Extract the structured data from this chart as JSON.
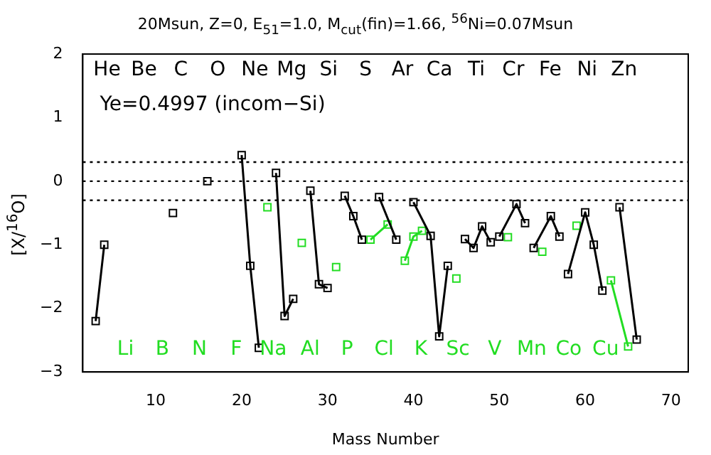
{
  "chart_data": {
    "type": "line",
    "title": "20Msun, Z=0, E$_{51}$=1.0, M$_{cut}$(fin)=1.66, $^{56}$Ni=0.07Msun",
    "xlabel": "Mass Number",
    "ylabel": "[X/$^{16}$O]",
    "series": [
      {
        "color": "#000000",
        "x": [
          3,
          4,
          5,
          12,
          13,
          16,
          17,
          20,
          21,
          22,
          23,
          24,
          25,
          26,
          27,
          28,
          29,
          30,
          31,
          32,
          33,
          34,
          35,
          36,
          38,
          39,
          40,
          42,
          43,
          44,
          45,
          46,
          47,
          48,
          49,
          49.5,
          50,
          52,
          53,
          53.5,
          54,
          56,
          57,
          57.5,
          58,
          60,
          61,
          62,
          63,
          64,
          66
        ],
        "values": [
          -2.2,
          -1.0,
          null,
          -0.5,
          null,
          0.0,
          null,
          0.41,
          -1.33,
          -2.62,
          null,
          0.13,
          -2.12,
          -1.85,
          null,
          -0.15,
          -1.62,
          -1.68,
          null,
          -0.23,
          -0.55,
          -0.92,
          null,
          -0.25,
          -0.92,
          null,
          -0.33,
          -0.86,
          -2.44,
          -1.33,
          null,
          -0.91,
          -1.05,
          -0.71,
          -0.96,
          null,
          -0.87,
          -0.36,
          -0.66,
          null,
          -1.05,
          -0.55,
          -0.87,
          null,
          -1.46,
          -0.49,
          -1.0,
          -1.72,
          null,
          -0.41,
          -2.49
        ]
      },
      {
        "color": "#22dd22",
        "x": [
          23,
          24,
          27,
          28,
          31,
          32,
          35,
          37,
          38,
          39,
          40,
          41,
          42,
          45,
          46,
          51,
          52,
          55,
          56,
          59,
          60,
          63,
          65
        ],
        "values": [
          -0.41,
          null,
          -0.97,
          null,
          -1.35,
          null,
          -0.92,
          -0.68,
          null,
          -1.25,
          -0.87,
          -0.78,
          null,
          -1.53,
          null,
          -0.88,
          null,
          -1.11,
          null,
          -0.7,
          null,
          -1.56,
          -2.6
        ]
      }
    ],
    "xlim": [
      1.5,
      72
    ],
    "xticks": [
      10,
      20,
      30,
      40,
      50,
      60,
      70
    ],
    "ylim": [
      -3,
      2
    ],
    "yticks": [
      -3,
      -2,
      -1,
      0,
      1,
      2
    ],
    "grid": false,
    "legend": false,
    "marker": "square",
    "ref_lines": [
      {
        "axis": "y",
        "value": 0.3,
        "color": "#000000",
        "line_style": "dotted"
      },
      {
        "axis": "y",
        "value": 0,
        "color": "#000000",
        "line_style": "dotted"
      },
      {
        "axis": "y",
        "value": -0.3,
        "color": "#000000",
        "line_style": "dotted"
      }
    ],
    "annotations": [
      "Ye=0.4997 (incom−Si)",
      "He",
      "Li",
      "Be",
      "B",
      "C",
      "N",
      "O",
      "F",
      "Ne",
      "Na",
      "Mg",
      "Al",
      "Si",
      "P",
      "S",
      "Cl",
      "Ar",
      "K",
      "Ca",
      "Sc",
      "Ti",
      "V",
      "Cr",
      "Mn",
      "Fe",
      "Co",
      "Ni",
      "Cu",
      "Zn"
    ]
  }
}
